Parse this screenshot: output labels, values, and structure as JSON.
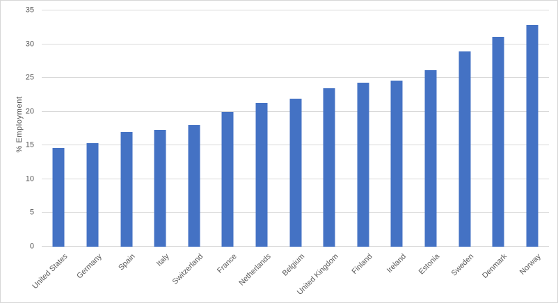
{
  "chart_data": {
    "type": "bar",
    "title": "",
    "xlabel": "",
    "ylabel": "% Employment",
    "categories": [
      "United States",
      "Germany",
      "Spain",
      "Italy",
      "Switzerland",
      "France",
      "Netherlands",
      "Belgium",
      "United Kingdom",
      "Finland",
      "Ireland",
      "Estonia",
      "Sweden",
      "Denmark",
      "Norway"
    ],
    "values": [
      14.6,
      15.3,
      17.0,
      17.3,
      18.0,
      20.0,
      21.3,
      21.9,
      23.5,
      24.3,
      24.6,
      26.1,
      28.9,
      31.1,
      32.8
    ],
    "ylim": [
      0,
      35
    ],
    "yticks": [
      0,
      5,
      10,
      15,
      20,
      25,
      30,
      35
    ],
    "grid": true,
    "legend": false,
    "bar_color": "#4472c4",
    "gridline_color": "#d9d9d9",
    "axis_text_color": "#595959",
    "background_color": "#ffffff",
    "x_label_rotation_deg": 45
  }
}
